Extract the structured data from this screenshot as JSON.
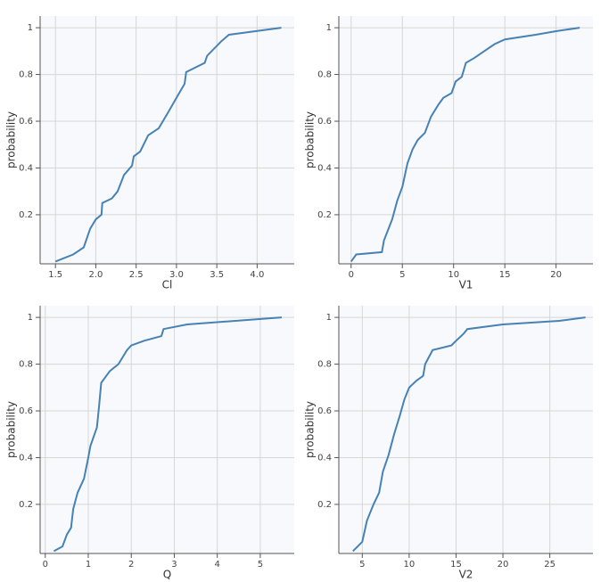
{
  "chart_data": [
    {
      "type": "line",
      "xlabel": "Cl",
      "ylabel": "probability",
      "color": "#4682b4",
      "grid": true,
      "x": [
        1.5,
        1.72,
        1.85,
        1.93,
        2.0,
        2.07,
        2.08,
        2.2,
        2.27,
        2.35,
        2.45,
        2.47,
        2.55,
        2.65,
        2.78,
        2.9,
        3.0,
        3.1,
        3.12,
        3.35,
        3.38,
        3.55,
        3.65,
        4.3
      ],
      "values": [
        0.0,
        0.03,
        0.06,
        0.14,
        0.18,
        0.2,
        0.25,
        0.27,
        0.3,
        0.37,
        0.41,
        0.45,
        0.47,
        0.54,
        0.57,
        0.64,
        0.7,
        0.76,
        0.81,
        0.85,
        0.88,
        0.94,
        0.97,
        1.0
      ],
      "xlim": [
        1.31,
        4.46
      ],
      "ylim": [
        -0.01,
        1.05
      ],
      "xticks": [
        1.5,
        {
          "value": 2,
          "label": "2.0"
        },
        2.5,
        {
          "value": 3,
          "label": "3.0"
        },
        3.5,
        {
          "value": 4,
          "label": "4.0"
        }
      ],
      "yticks": [
        0.2,
        0.4,
        0.6,
        0.8,
        1
      ]
    },
    {
      "type": "line",
      "xlabel": "V1",
      "ylabel": "probability",
      "color": "#4682b4",
      "grid": true,
      "x": [
        0,
        0.5,
        3,
        3.2,
        4,
        4.5,
        5,
        5.5,
        6,
        6.5,
        7.2,
        7.8,
        8.5,
        9,
        9.8,
        10.2,
        10.8,
        11.2,
        12,
        13,
        14,
        15,
        18,
        20,
        22.3
      ],
      "values": [
        0.0,
        0.03,
        0.04,
        0.09,
        0.18,
        0.26,
        0.32,
        0.42,
        0.48,
        0.52,
        0.55,
        0.62,
        0.67,
        0.7,
        0.72,
        0.77,
        0.79,
        0.85,
        0.87,
        0.9,
        0.93,
        0.95,
        0.97,
        0.985,
        1.0
      ],
      "xlim": [
        -1.2,
        23.6
      ],
      "ylim": [
        -0.01,
        1.05
      ],
      "xticks": [
        0,
        5,
        10,
        15,
        20
      ],
      "yticks": [
        0.2,
        0.4,
        0.6,
        0.8,
        1
      ]
    },
    {
      "type": "line",
      "xlabel": "Q",
      "ylabel": "probability",
      "color": "#4682b4",
      "grid": true,
      "x": [
        0.2,
        0.4,
        0.5,
        0.6,
        0.65,
        0.75,
        0.9,
        1.0,
        1.05,
        1.2,
        1.25,
        1.3,
        1.5,
        1.7,
        1.9,
        2.0,
        2.3,
        2.7,
        2.75,
        3.3,
        5.5
      ],
      "values": [
        0.0,
        0.02,
        0.07,
        0.1,
        0.18,
        0.25,
        0.31,
        0.4,
        0.45,
        0.53,
        0.62,
        0.72,
        0.77,
        0.8,
        0.86,
        0.88,
        0.9,
        0.92,
        0.95,
        0.97,
        1.0
      ],
      "xlim": [
        -0.12,
        5.79
      ],
      "ylim": [
        -0.01,
        1.05
      ],
      "xticks": [
        0,
        1,
        2,
        3,
        4,
        5
      ],
      "yticks": [
        0.2,
        0.4,
        0.6,
        0.8,
        1
      ]
    },
    {
      "type": "line",
      "xlabel": "V2",
      "ylabel": "probability",
      "color": "#4682b4",
      "grid": true,
      "x": [
        4,
        5,
        5.5,
        6.2,
        6.8,
        7.2,
        7.8,
        8.4,
        9,
        9.5,
        10,
        10.8,
        11.5,
        11.7,
        12.5,
        14.5,
        15,
        15.8,
        16.2,
        20,
        26,
        28.8
      ],
      "values": [
        0.0,
        0.04,
        0.13,
        0.2,
        0.25,
        0.34,
        0.41,
        0.5,
        0.58,
        0.65,
        0.7,
        0.73,
        0.75,
        0.8,
        0.86,
        0.88,
        0.9,
        0.93,
        0.95,
        0.97,
        0.985,
        1.0
      ],
      "xlim": [
        2.5,
        29.6
      ],
      "ylim": [
        -0.01,
        1.05
      ],
      "xticks": [
        5,
        10,
        15,
        20,
        25
      ],
      "yticks": [
        0.2,
        0.4,
        0.6,
        0.8,
        1
      ]
    }
  ]
}
